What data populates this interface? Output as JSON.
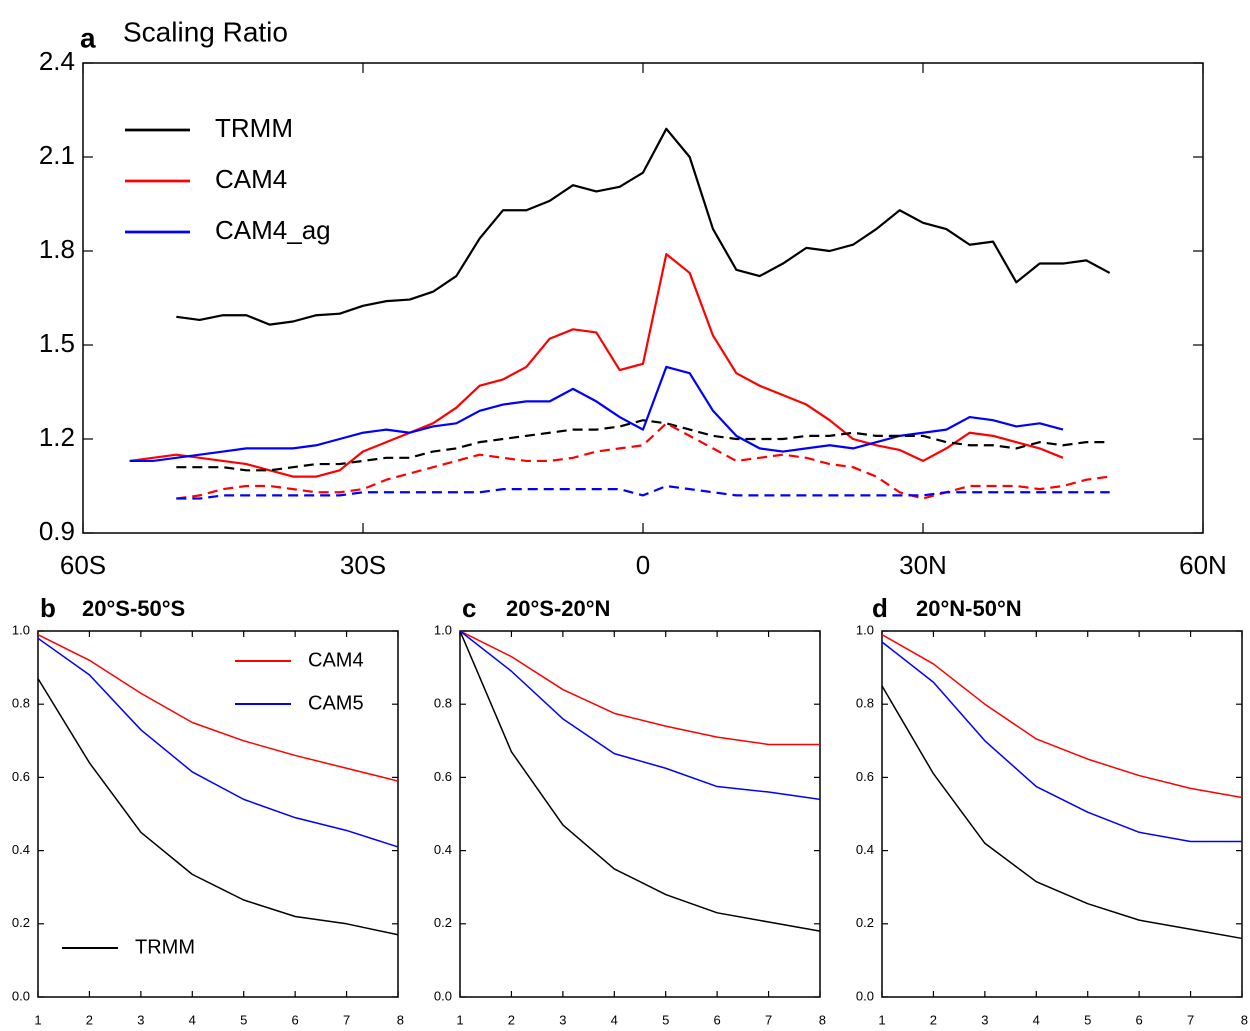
{
  "chart_data": [
    {
      "type": "line",
      "panel_label": "a",
      "title": "Scaling Ratio",
      "x": [
        -55,
        -52.5,
        -50,
        -47.5,
        -45,
        -42.5,
        -40,
        -37.5,
        -35,
        -32.5,
        -30,
        -27.5,
        -25,
        -22.5,
        -20,
        -17.5,
        -15,
        -12.5,
        -10,
        -7.5,
        -5,
        -2.5,
        0,
        2.5,
        5,
        7.5,
        10,
        12.5,
        15,
        17.5,
        20,
        22.5,
        25,
        27.5,
        30,
        32.5,
        35,
        37.5,
        40,
        42.5,
        45,
        47.5,
        50
      ],
      "series": [
        {
          "name": "TRMM",
          "color": "#000000",
          "style": "solid",
          "values": [
            null,
            null,
            1.59,
            1.58,
            1.595,
            1.595,
            1.565,
            1.575,
            1.595,
            1.6,
            1.625,
            1.64,
            1.645,
            1.67,
            1.72,
            1.84,
            1.93,
            1.93,
            1.96,
            2.01,
            1.99,
            2.005,
            2.05,
            2.19,
            2.1,
            1.87,
            1.74,
            1.72,
            1.76,
            1.81,
            1.8,
            1.82,
            1.87,
            1.93,
            1.89,
            1.87,
            1.82,
            1.83,
            1.7,
            1.76,
            1.76,
            1.77,
            1.73
          ]
        },
        {
          "name": "CAM4",
          "color": "#ff0000",
          "style": "solid",
          "values": [
            1.13,
            1.14,
            1.15,
            1.14,
            1.13,
            1.12,
            1.1,
            1.08,
            1.08,
            1.1,
            1.16,
            1.19,
            1.22,
            1.25,
            1.3,
            1.37,
            1.39,
            1.43,
            1.52,
            1.55,
            1.54,
            1.42,
            1.44,
            1.79,
            1.73,
            1.53,
            1.41,
            1.37,
            1.34,
            1.31,
            1.26,
            1.2,
            1.18,
            1.165,
            1.13,
            1.17,
            1.22,
            1.21,
            1.19,
            1.17,
            1.14,
            null,
            null
          ]
        },
        {
          "name": "CAM4_ag",
          "color": "#0000ff",
          "style": "solid",
          "values": [
            1.13,
            1.13,
            1.14,
            1.15,
            1.16,
            1.17,
            1.17,
            1.17,
            1.18,
            1.2,
            1.22,
            1.23,
            1.22,
            1.24,
            1.25,
            1.29,
            1.31,
            1.32,
            1.32,
            1.36,
            1.32,
            1.27,
            1.23,
            1.43,
            1.41,
            1.29,
            1.21,
            1.17,
            1.16,
            1.17,
            1.18,
            1.17,
            1.19,
            1.21,
            1.22,
            1.23,
            1.27,
            1.26,
            1.24,
            1.25,
            1.23,
            null,
            null
          ]
        },
        {
          "color": "#000000",
          "style": "dashed",
          "values": [
            null,
            null,
            1.11,
            1.11,
            1.11,
            1.1,
            1.1,
            1.11,
            1.12,
            1.12,
            1.13,
            1.14,
            1.14,
            1.16,
            1.17,
            1.19,
            1.2,
            1.21,
            1.22,
            1.23,
            1.23,
            1.24,
            1.26,
            1.25,
            1.23,
            1.21,
            1.2,
            1.2,
            1.2,
            1.21,
            1.21,
            1.22,
            1.21,
            1.21,
            1.21,
            1.19,
            1.18,
            1.18,
            1.17,
            1.19,
            1.18,
            1.19,
            1.19
          ]
        },
        {
          "color": "#ff0000",
          "style": "dashed",
          "values": [
            null,
            null,
            1.01,
            1.02,
            1.04,
            1.05,
            1.05,
            1.04,
            1.03,
            1.03,
            1.04,
            1.07,
            1.09,
            1.11,
            1.13,
            1.15,
            1.14,
            1.13,
            1.13,
            1.14,
            1.16,
            1.17,
            1.18,
            1.25,
            1.21,
            1.17,
            1.13,
            1.14,
            1.15,
            1.14,
            1.12,
            1.11,
            1.08,
            1.03,
            1.01,
            1.03,
            1.05,
            1.05,
            1.05,
            1.04,
            1.05,
            1.07,
            1.08
          ]
        },
        {
          "color": "#0000ff",
          "style": "dashed",
          "values": [
            null,
            null,
            1.01,
            1.01,
            1.02,
            1.02,
            1.02,
            1.02,
            1.02,
            1.02,
            1.03,
            1.03,
            1.03,
            1.03,
            1.03,
            1.03,
            1.04,
            1.04,
            1.04,
            1.04,
            1.04,
            1.04,
            1.02,
            1.05,
            1.04,
            1.03,
            1.02,
            1.02,
            1.02,
            1.02,
            1.02,
            1.02,
            1.02,
            1.02,
            1.02,
            1.03,
            1.03,
            1.03,
            1.03,
            1.03,
            1.03,
            1.03,
            1.03
          ]
        }
      ],
      "xlim": [
        -60,
        60
      ],
      "xticks": [
        {
          "value": -60,
          "label": "60S"
        },
        {
          "value": -30,
          "label": "30S"
        },
        0,
        {
          "value": 30,
          "label": "30N"
        },
        {
          "value": 60,
          "label": "60N"
        }
      ],
      "ylim": [
        0.9,
        2.4
      ],
      "yticks": [
        0.9,
        1.2,
        1.5,
        1.8,
        2.1,
        2.4
      ]
    },
    {
      "type": "line",
      "panel_label": "b",
      "title": "20°S-50°S",
      "x": [
        1,
        2,
        3,
        4,
        5,
        6,
        7,
        8
      ],
      "series": [
        {
          "name": "TRMM",
          "color": "#000000",
          "values": [
            0.87,
            0.64,
            0.45,
            0.335,
            0.265,
            0.22,
            0.2,
            0.17
          ]
        },
        {
          "name": "CAM4",
          "color": "#ff0000",
          "values": [
            0.99,
            0.92,
            0.83,
            0.75,
            0.7,
            0.66,
            0.625,
            0.59
          ]
        },
        {
          "name": "CAM5",
          "color": "#0000ff",
          "values": [
            0.98,
            0.88,
            0.73,
            0.615,
            0.54,
            0.49,
            0.455,
            0.41
          ]
        }
      ],
      "xlim": [
        1,
        8
      ],
      "xticks": [
        1,
        2,
        3,
        4,
        5,
        6,
        7,
        8
      ],
      "ylim": [
        0,
        1
      ],
      "yticks": [
        {
          "value": 0,
          "label": "0.0"
        },
        0.2,
        0.4,
        0.6,
        0.8,
        {
          "value": 1,
          "label": "1.0"
        }
      ]
    },
    {
      "type": "line",
      "panel_label": "c",
      "title": "20°S-20°N",
      "x": [
        1,
        2,
        3,
        4,
        5,
        6,
        7,
        8
      ],
      "series": [
        {
          "color": "#000000",
          "values": [
            1.0,
            0.67,
            0.47,
            0.35,
            0.28,
            0.23,
            0.205,
            0.18
          ]
        },
        {
          "color": "#ff0000",
          "values": [
            1.0,
            0.93,
            0.84,
            0.775,
            0.74,
            0.71,
            0.69,
            0.69
          ]
        },
        {
          "color": "#0000ff",
          "values": [
            1.0,
            0.89,
            0.76,
            0.665,
            0.625,
            0.575,
            0.56,
            0.54
          ]
        }
      ],
      "xlim": [
        1,
        8
      ],
      "xticks": [
        1,
        2,
        3,
        4,
        5,
        6,
        7,
        8
      ],
      "ylim": [
        0,
        1
      ],
      "yticks": [
        {
          "value": 0,
          "label": "0.0"
        },
        0.2,
        0.4,
        0.6,
        0.8,
        {
          "value": 1,
          "label": "1.0"
        }
      ]
    },
    {
      "type": "line",
      "panel_label": "d",
      "title": "20°N-50°N",
      "x": [
        1,
        2,
        3,
        4,
        5,
        6,
        7,
        8
      ],
      "series": [
        {
          "color": "#000000",
          "values": [
            0.85,
            0.61,
            0.42,
            0.315,
            0.255,
            0.21,
            0.185,
            0.16
          ]
        },
        {
          "color": "#ff0000",
          "values": [
            0.99,
            0.91,
            0.8,
            0.705,
            0.65,
            0.605,
            0.57,
            0.545
          ]
        },
        {
          "color": "#0000ff",
          "values": [
            0.97,
            0.86,
            0.7,
            0.575,
            0.505,
            0.45,
            0.425,
            0.425
          ]
        }
      ],
      "xlim": [
        1,
        8
      ],
      "xticks": [
        1,
        2,
        3,
        4,
        5,
        6,
        7,
        8
      ],
      "ylim": [
        0,
        1
      ],
      "yticks": [
        {
          "value": 0,
          "label": "0.0"
        },
        0.2,
        0.4,
        0.6,
        0.8,
        {
          "value": 1,
          "label": "1.0"
        }
      ]
    }
  ]
}
